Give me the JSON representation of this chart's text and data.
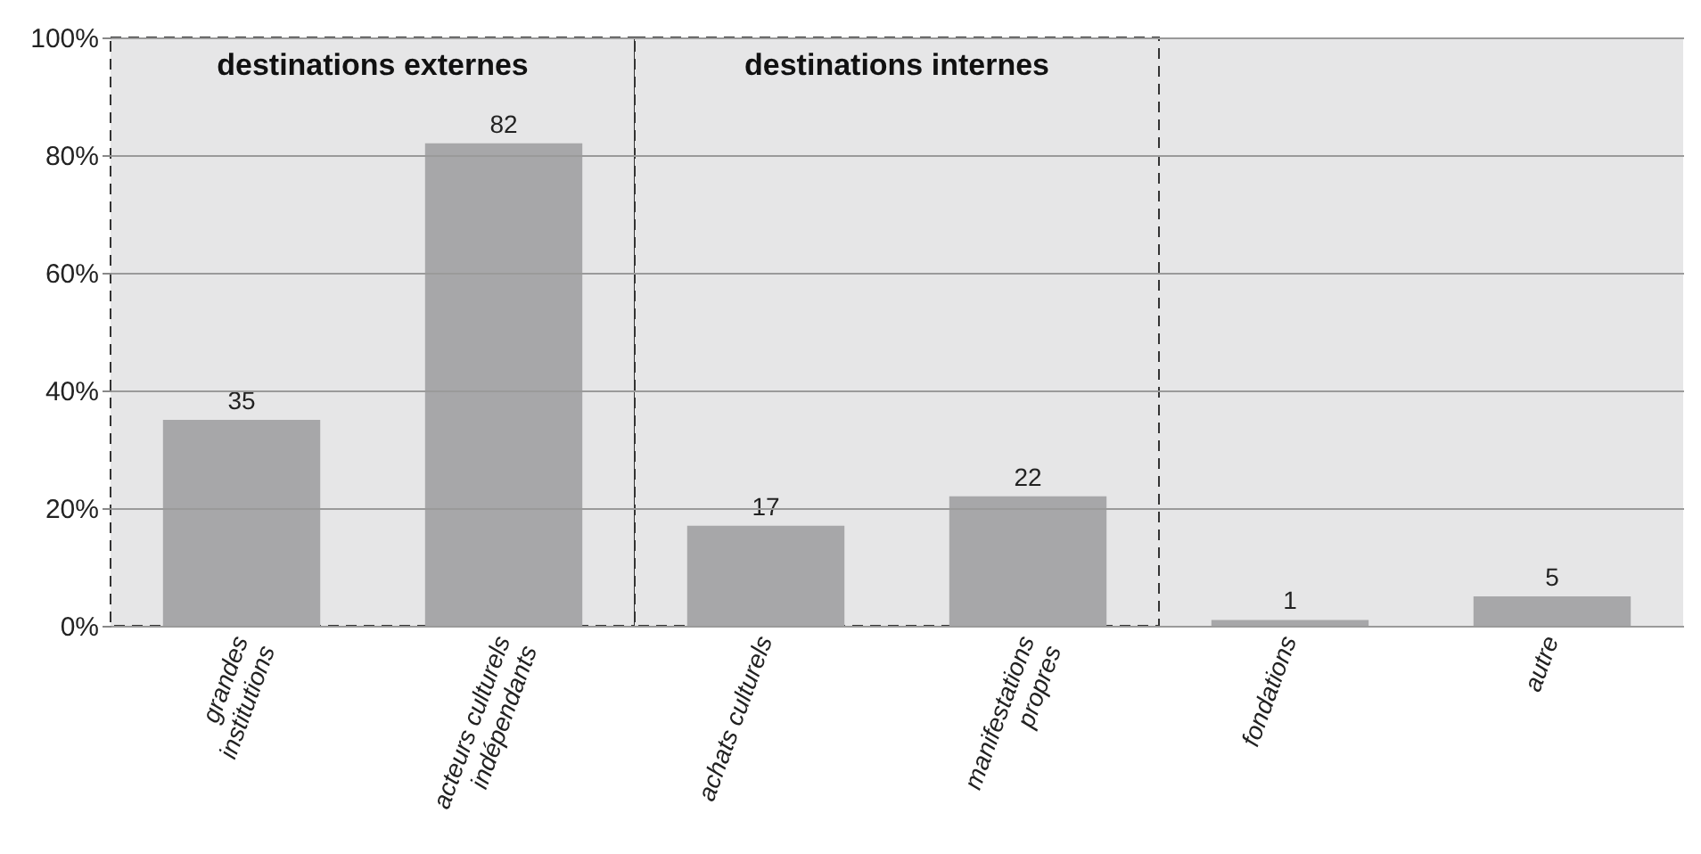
{
  "chart_data": {
    "type": "bar",
    "categories": [
      "grandes institutions",
      "acteurs culturels indépendants",
      "achats culturels",
      "manifestations propres",
      "fondations",
      "autre"
    ],
    "values": [
      35,
      82,
      17,
      22,
      1,
      5
    ],
    "color": "#a7a7a9",
    "ylim": [
      0,
      100
    ],
    "yticks": [
      {
        "value": 0,
        "label": "0%"
      },
      {
        "value": 20,
        "label": "20%"
      },
      {
        "value": 40,
        "label": "40%"
      },
      {
        "value": 60,
        "label": "60%"
      },
      {
        "value": 80,
        "label": "80%"
      },
      {
        "value": 100,
        "label": "100%"
      }
    ],
    "grid": "y",
    "data_labels": true,
    "bands": [
      {
        "axis": "x",
        "from": "grandes institutions",
        "to": "acteurs culturels indépendants",
        "label": "destinations externes",
        "color": "#e6e6e7"
      },
      {
        "axis": "x",
        "from": "achats culturels",
        "to": "manifestations propres",
        "label": "destinations internes",
        "color": "#e6e6e7"
      }
    ]
  }
}
